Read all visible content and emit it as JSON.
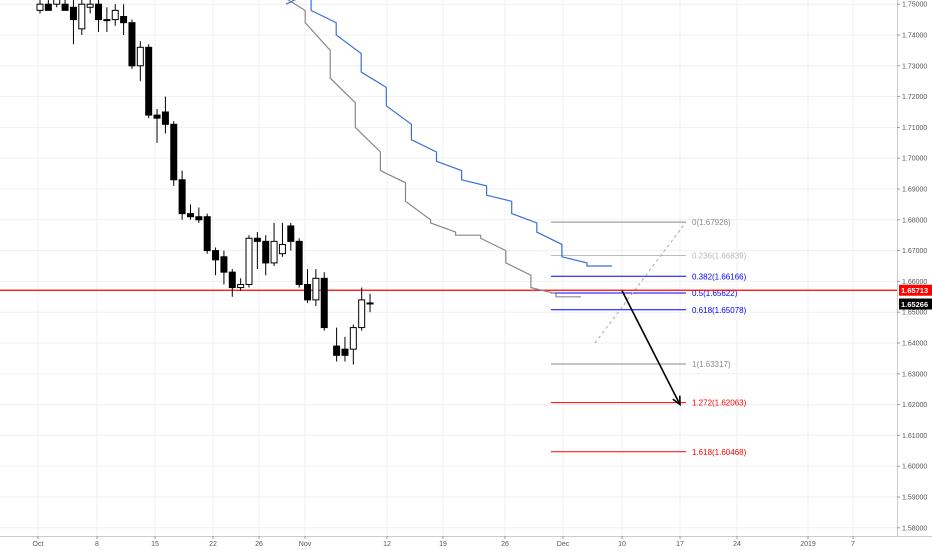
{
  "chart_data": {
    "type": "candlestick",
    "title": "",
    "xlabel": "",
    "ylabel": "",
    "ylim": [
      1.575,
      1.755
    ],
    "grid": true,
    "x_tick_labels": [
      "Oct",
      "8",
      "15",
      "22",
      "26",
      "Nov",
      "12",
      "19",
      "26",
      "Dec",
      "10",
      "17",
      "24",
      "2019",
      "7"
    ],
    "y_tick_labels": [
      "1.58000",
      "1.59000",
      "1.60000",
      "1.61000",
      "1.62000",
      "1.63000",
      "1.64000",
      "1.65000",
      "1.66000",
      "1.67000",
      "1.68000",
      "1.69000",
      "1.70000",
      "1.71000",
      "1.72000",
      "1.73000",
      "1.74000",
      "1.75000"
    ],
    "candles": [
      {
        "o": 1.748,
        "h": 1.752,
        "l": 1.747,
        "c": 1.75
      },
      {
        "o": 1.75,
        "h": 1.753,
        "l": 1.748,
        "c": 1.748
      },
      {
        "o": 1.75,
        "h": 1.754,
        "l": 1.749,
        "c": 1.752
      },
      {
        "o": 1.75,
        "h": 1.753,
        "l": 1.748,
        "c": 1.748
      },
      {
        "o": 1.749,
        "h": 1.754,
        "l": 1.737,
        "c": 1.745
      },
      {
        "o": 1.742,
        "h": 1.753,
        "l": 1.74,
        "c": 1.75
      },
      {
        "o": 1.749,
        "h": 1.753,
        "l": 1.747,
        "c": 1.75
      },
      {
        "o": 1.75,
        "h": 1.753,
        "l": 1.741,
        "c": 1.745
      },
      {
        "o": 1.745,
        "h": 1.749,
        "l": 1.741,
        "c": 1.745
      },
      {
        "o": 1.745,
        "h": 1.75,
        "l": 1.743,
        "c": 1.748
      },
      {
        "o": 1.746,
        "h": 1.75,
        "l": 1.74,
        "c": 1.744
      },
      {
        "o": 1.744,
        "h": 1.745,
        "l": 1.729,
        "c": 1.73
      },
      {
        "o": 1.73,
        "h": 1.738,
        "l": 1.725,
        "c": 1.736
      },
      {
        "o": 1.736,
        "h": 1.737,
        "l": 1.713,
        "c": 1.714
      },
      {
        "o": 1.714,
        "h": 1.716,
        "l": 1.705,
        "c": 1.713
      },
      {
        "o": 1.715,
        "h": 1.72,
        "l": 1.708,
        "c": 1.711
      },
      {
        "o": 1.711,
        "h": 1.712,
        "l": 1.691,
        "c": 1.693
      },
      {
        "o": 1.693,
        "h": 1.696,
        "l": 1.68,
        "c": 1.682
      },
      {
        "o": 1.682,
        "h": 1.685,
        "l": 1.68,
        "c": 1.681
      },
      {
        "o": 1.681,
        "h": 1.684,
        "l": 1.679,
        "c": 1.68
      },
      {
        "o": 1.681,
        "h": 1.682,
        "l": 1.669,
        "c": 1.67
      },
      {
        "o": 1.67,
        "h": 1.671,
        "l": 1.662,
        "c": 1.667
      },
      {
        "o": 1.668,
        "h": 1.67,
        "l": 1.659,
        "c": 1.663
      },
      {
        "o": 1.663,
        "h": 1.664,
        "l": 1.655,
        "c": 1.658
      },
      {
        "o": 1.658,
        "h": 1.661,
        "l": 1.657,
        "c": 1.659
      },
      {
        "o": 1.659,
        "h": 1.675,
        "l": 1.658,
        "c": 1.674
      },
      {
        "o": 1.674,
        "h": 1.676,
        "l": 1.664,
        "c": 1.673
      },
      {
        "o": 1.673,
        "h": 1.675,
        "l": 1.662,
        "c": 1.666
      },
      {
        "o": 1.666,
        "h": 1.679,
        "l": 1.665,
        "c": 1.673
      },
      {
        "o": 1.669,
        "h": 1.679,
        "l": 1.668,
        "c": 1.672
      },
      {
        "o": 1.678,
        "h": 1.679,
        "l": 1.67,
        "c": 1.673
      },
      {
        "o": 1.673,
        "h": 1.674,
        "l": 1.658,
        "c": 1.659
      },
      {
        "o": 1.659,
        "h": 1.664,
        "l": 1.653,
        "c": 1.654
      },
      {
        "o": 1.654,
        "h": 1.664,
        "l": 1.652,
        "c": 1.661
      },
      {
        "o": 1.661,
        "h": 1.663,
        "l": 1.644,
        "c": 1.645
      },
      {
        "o": 1.639,
        "h": 1.645,
        "l": 1.634,
        "c": 1.636
      },
      {
        "o": 1.638,
        "h": 1.642,
        "l": 1.634,
        "c": 1.636
      },
      {
        "o": 1.638,
        "h": 1.646,
        "l": 1.633,
        "c": 1.645
      },
      {
        "o": 1.645,
        "h": 1.658,
        "l": 1.644,
        "c": 1.654
      },
      {
        "o": 1.653,
        "h": 1.656,
        "l": 1.65,
        "c": 1.653
      }
    ],
    "ma_fast": [
      [
        1.756,
        1.7555
      ],
      [
        1.753,
        1.748
      ],
      [
        1.744,
        1.735
      ],
      [
        1.726,
        1.718
      ],
      [
        1.71,
        1.702
      ],
      [
        1.696,
        1.692
      ],
      [
        1.686,
        1.68
      ],
      [
        1.679,
        1.676
      ],
      [
        1.675,
        1.675
      ],
      [
        1.674,
        1.67
      ],
      [
        1.666,
        1.662
      ],
      [
        1.658,
        1.656
      ],
      [
        1.655,
        1.655
      ]
    ],
    "ma_slow": [
      [
        1.75,
        1.754
      ],
      [
        1.748,
        1.744
      ],
      [
        1.74,
        1.734
      ],
      [
        1.728,
        1.723
      ],
      [
        1.717,
        1.711
      ],
      [
        1.706,
        1.702
      ],
      [
        1.699,
        1.696
      ],
      [
        1.693,
        1.691
      ],
      [
        1.688,
        1.686
      ],
      [
        1.682,
        1.679
      ],
      [
        1.676,
        1.672
      ],
      [
        1.668,
        1.666
      ],
      [
        1.665,
        1.665
      ]
    ],
    "fib_levels": [
      {
        "label": "0(1.67926)",
        "value": 1.67926,
        "color": "#888888"
      },
      {
        "label": "0.236(1.66839)",
        "value": 1.66839,
        "color": "#bbbbbb"
      },
      {
        "label": "0.382(1.66166)",
        "value": 1.66166,
        "color": "#0000ff"
      },
      {
        "label": "0.5(1.65622)",
        "value": 1.65622,
        "color": "#0000ff"
      },
      {
        "label": "0.618(1.65078)",
        "value": 1.65078,
        "color": "#0000ff"
      },
      {
        "label": "1(1.63317)",
        "value": 1.63317,
        "color": "#888888"
      },
      {
        "label": "1.272(1.62063)",
        "value": 1.62063,
        "color": "#ff0000"
      },
      {
        "label": "1.618(1.60468)",
        "value": 1.60468,
        "color": "#ff0000"
      }
    ],
    "horizontal_line": {
      "value": 1.65713,
      "label": "1.65713",
      "color": "#ff0000"
    },
    "last_price": {
      "value": 1.65266,
      "label": "1.65266",
      "color": "#000000"
    },
    "arrow": {
      "from": 1.657,
      "to": 1.62,
      "color": "#000000"
    }
  }
}
